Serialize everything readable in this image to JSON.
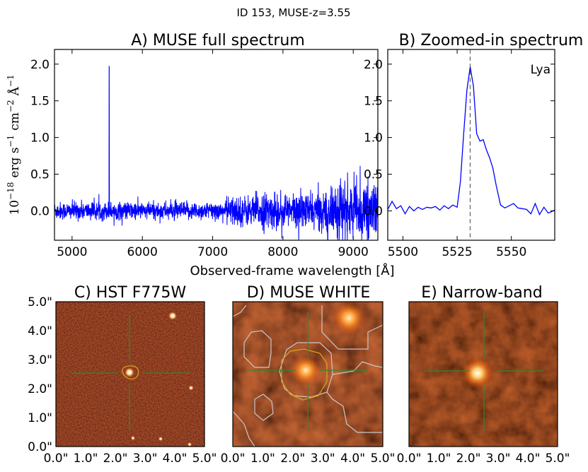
{
  "figure": {
    "suptitle": "ID 153, MUSE-z=3.55",
    "shared_xlabel": "Observed-frame wavelength [Å]",
    "ylabel": {
      "base": "10",
      "exp18": "−18",
      "erg": "erg s",
      "exp1a": "−1",
      "cm": "cm",
      "exp2": "−2",
      "ang": "Å",
      "exp1b": "−1"
    }
  },
  "chart_data": [
    {
      "id": "A",
      "type": "line",
      "title": "A) MUSE full spectrum",
      "xlim": [
        4750,
        9350
      ],
      "ylim": [
        -0.4,
        2.2
      ],
      "xticks": [
        5000,
        6000,
        7000,
        8000,
        9000
      ],
      "xtick_labels": [
        "5000",
        "6000",
        "7000",
        "8000",
        "9000"
      ],
      "yticks": [
        0.0,
        0.5,
        1.0,
        1.5,
        2.0
      ],
      "ytick_labels": [
        "0.0",
        "0.5",
        "1.0",
        "1.5",
        "2.0"
      ],
      "color": "#0000ff",
      "peak": {
        "x": 5528,
        "y": 1.97
      },
      "noise_segments": [
        {
          "x_start": 4750,
          "x_end": 7200,
          "rms": 0.06
        },
        {
          "x_start": 7200,
          "x_end": 7600,
          "rms": 0.1
        },
        {
          "x_start": 7600,
          "x_end": 8600,
          "rms": 0.12
        },
        {
          "x_start": 8600,
          "x_end": 9350,
          "rms": 0.18
        }
      ]
    },
    {
      "id": "B",
      "type": "line",
      "title": "B) Zoomed-in spectrum",
      "xlim": [
        5493,
        5570
      ],
      "ylim": [
        -0.4,
        2.2
      ],
      "xticks": [
        5500,
        5525,
        5550
      ],
      "xtick_labels": [
        "5500",
        "5525",
        "5550"
      ],
      "yticks": [
        0.0,
        0.5,
        1.0,
        1.5,
        2.0
      ],
      "ytick_labels": [
        "0.0",
        "0.5",
        "1.0",
        "1.5",
        "2.0"
      ],
      "color": "#0000ff",
      "line_label": "Lya",
      "marker_line_x": 5531,
      "x": [
        5493,
        5495,
        5497,
        5499,
        5501,
        5503,
        5505,
        5507,
        5509,
        5511,
        5513,
        5515,
        5517,
        5519,
        5521,
        5523,
        5525,
        5526.5,
        5528,
        5529.5,
        5531,
        5532.5,
        5534,
        5535.5,
        5537,
        5538.5,
        5540,
        5541.5,
        5543,
        5545,
        5547,
        5549,
        5551,
        5553,
        5555,
        5557,
        5559,
        5561,
        5563,
        5565,
        5567,
        5570
      ],
      "y": [
        0.02,
        0.13,
        0.03,
        0.07,
        -0.04,
        0.06,
        0.0,
        0.05,
        0.02,
        0.05,
        0.04,
        0.06,
        0.01,
        0.07,
        0.03,
        0.08,
        0.05,
        0.4,
        1.05,
        1.65,
        1.96,
        1.7,
        1.05,
        0.95,
        0.97,
        0.83,
        0.72,
        0.58,
        0.35,
        0.08,
        0.04,
        0.07,
        0.1,
        0.04,
        0.03,
        0.02,
        -0.04,
        0.1,
        -0.05,
        0.05,
        -0.03,
        0.01
      ]
    },
    {
      "id": "C",
      "type": "image",
      "title": "C) HST F775W",
      "xtick_labels": [
        "0.0\"",
        "1.0\"",
        "2.0\"",
        "3.0\"",
        "4.0\"",
        "5.0\""
      ],
      "ytick_labels": [
        "0.0\"",
        "1.0\"",
        "2.0\"",
        "3.0\"",
        "4.0\"",
        "5.0\""
      ]
    },
    {
      "id": "D",
      "type": "image",
      "title": "D) MUSE WHITE",
      "xtick_labels": [
        "0.0\"",
        "1.0\"",
        "2.0\"",
        "3.0\"",
        "4.0\"",
        "5.0\""
      ]
    },
    {
      "id": "E",
      "type": "image",
      "title": "E) Narrow-band",
      "xtick_labels": [
        "0.0\"",
        "1.0\"",
        "2.0\"",
        "3.0\"",
        "4.0\"",
        "5.0\""
      ]
    }
  ],
  "colors": {
    "spectrum": "#0000ff",
    "crosshair": "#2e8b2e",
    "contour_gold": "#d4a020",
    "contour_grey": "#c8c8c8",
    "hst_bg": "#8c1a08",
    "muse_bg": "#8a1a06"
  }
}
